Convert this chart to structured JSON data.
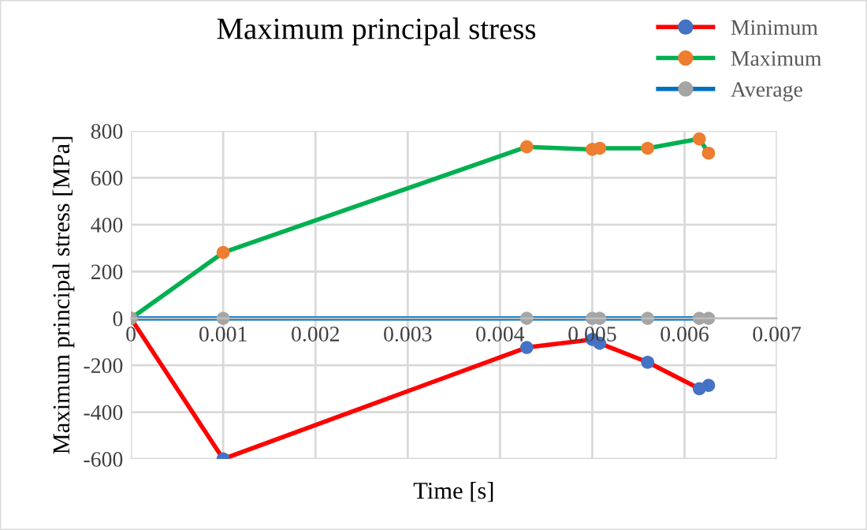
{
  "chart_data": {
    "type": "line",
    "title": "Maximum principal stress",
    "xlabel": "Time [s]",
    "ylabel": "Maximum principal stress [MPa]",
    "x": [
      0,
      0.001,
      0.00429,
      0.005,
      0.00508,
      0.0056,
      0.00616,
      0.00626
    ],
    "series": [
      {
        "name": "Minimum",
        "color": "#ff0000",
        "colors": [
          "#4472c4",
          "#4472c4",
          "#4472c4",
          "#4472c4",
          "#4472c4",
          "#4472c4",
          "#4472c4",
          "#4472c4"
        ],
        "values": [
          0,
          -600,
          -124,
          -90,
          -106,
          -187,
          -300,
          -286
        ]
      },
      {
        "name": "Maximum",
        "color": "#00b050",
        "colors": [
          "#ed7d31",
          "#ed7d31",
          "#ed7d31",
          "#ed7d31",
          "#ed7d31",
          "#ed7d31",
          "#ed7d31",
          "#ed7d31"
        ],
        "values": [
          0,
          281,
          732,
          721,
          726,
          726,
          766,
          705
        ]
      },
      {
        "name": "Average",
        "color": "#0070c0",
        "colors": [
          "#a5a5a5",
          "#a5a5a5",
          "#a5a5a5",
          "#a5a5a5",
          "#a5a5a5",
          "#a5a5a5",
          "#a5a5a5",
          "#a5a5a5"
        ],
        "values": [
          0,
          0,
          0,
          0,
          0,
          0,
          0,
          0
        ]
      }
    ],
    "xlim": [
      0,
      0.007
    ],
    "xticks": [
      0,
      0.001,
      0.002,
      0.003,
      0.004,
      0.005,
      0.006,
      0.007
    ],
    "ylim": [
      -600,
      800
    ],
    "yticks": [
      -600,
      -400,
      -200,
      0,
      200,
      400,
      600,
      800
    ],
    "grid": true,
    "legend": "top right",
    "marker": "circle",
    "line_style": "solid"
  }
}
